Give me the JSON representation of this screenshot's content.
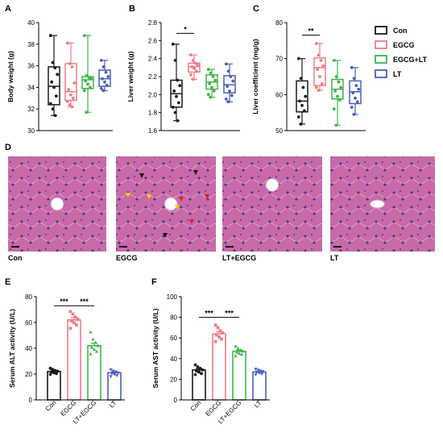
{
  "colors": {
    "Con": "#1a1a1a",
    "EGCG": "#f07c86",
    "EGCG+LT": "#3fb54a",
    "LT": "#4c5fbf",
    "tissue_base": "#c86aa8",
    "tissue_light": "#e8b6d6",
    "nucleus": "#4d3a8a"
  },
  "legend": {
    "entries": [
      {
        "label": "Con",
        "color": "#1a1a1a"
      },
      {
        "label": "EGCG",
        "color": "#f07c86"
      },
      {
        "label": "EGCG+LT",
        "color": "#3fb54a"
      },
      {
        "label": "LT",
        "color": "#4c5fbf"
      }
    ]
  },
  "panel_D": {
    "letter": "D",
    "images": [
      {
        "caption": "Con"
      },
      {
        "caption": "EGCG"
      },
      {
        "caption": "LT+EGCG"
      },
      {
        "caption": "LT"
      }
    ]
  },
  "chart_data": [
    {
      "panel": "A",
      "type": "box",
      "ylabel": "Body weight (g)",
      "ylim": [
        30,
        40
      ],
      "yticks": [
        30,
        32,
        34,
        36,
        38,
        40
      ],
      "legend": "right",
      "groups": [
        {
          "name": "Con",
          "color": "#1a1a1a",
          "min": 31.4,
          "q1": 32.4,
          "median": 34.1,
          "q3": 35.9,
          "max": 38.8,
          "points": [
            38.8,
            36.3,
            35.8,
            35.2,
            34.5,
            34.0,
            33.2,
            32.5,
            32.0,
            31.4
          ]
        },
        {
          "name": "EGCG",
          "color": "#f07c86",
          "min": 32.2,
          "q1": 32.8,
          "median": 33.6,
          "q3": 36.2,
          "max": 38.1,
          "points": [
            38.1,
            36.2,
            35.9,
            34.4,
            33.8,
            33.3,
            33.0,
            32.7,
            32.4,
            32.2
          ]
        },
        {
          "name": "EGCG+LT",
          "color": "#3fb54a",
          "min": 31.7,
          "q1": 33.9,
          "median": 34.7,
          "q3": 35.0,
          "max": 38.8,
          "points": [
            38.8,
            35.1,
            34.9,
            34.8,
            34.6,
            34.3,
            34.0,
            33.7,
            31.7
          ]
        },
        {
          "name": "LT",
          "color": "#4c5fbf",
          "min": 33.7,
          "q1": 34.1,
          "median": 34.8,
          "q3": 35.6,
          "max": 36.5,
          "points": [
            36.5,
            35.9,
            35.4,
            35.0,
            34.8,
            34.5,
            34.2,
            33.9,
            33.7
          ]
        }
      ]
    },
    {
      "panel": "B",
      "type": "box",
      "ylabel": "Liver weight (g)",
      "ylim": [
        1.6,
        2.8
      ],
      "yticks": [
        1.6,
        1.8,
        2.0,
        2.2,
        2.4,
        2.6,
        2.8
      ],
      "significance": [
        {
          "from": 0,
          "to": 1,
          "text": "*",
          "y": 2.68
        }
      ],
      "groups": [
        {
          "name": "Con",
          "color": "#1a1a1a",
          "min": 1.71,
          "q1": 1.86,
          "median": 2.01,
          "q3": 2.16,
          "max": 2.56,
          "points": [
            2.56,
            2.38,
            2.16,
            2.1,
            2.04,
            1.98,
            1.91,
            1.86,
            1.8,
            1.71
          ]
        },
        {
          "name": "EGCG",
          "color": "#f07c86",
          "min": 2.17,
          "q1": 2.25,
          "median": 2.31,
          "q3": 2.35,
          "max": 2.44,
          "points": [
            2.44,
            2.38,
            2.35,
            2.33,
            2.31,
            2.29,
            2.26,
            2.22,
            2.17
          ]
        },
        {
          "name": "EGCG+LT",
          "color": "#3fb54a",
          "min": 1.97,
          "q1": 2.06,
          "median": 2.14,
          "q3": 2.22,
          "max": 2.28,
          "points": [
            2.28,
            2.24,
            2.2,
            2.16,
            2.12,
            2.08,
            2.04,
            2.0,
            1.97
          ]
        },
        {
          "name": "LT",
          "color": "#4c5fbf",
          "min": 1.92,
          "q1": 2.02,
          "median": 2.11,
          "q3": 2.21,
          "max": 2.34,
          "points": [
            2.34,
            2.26,
            2.2,
            2.15,
            2.09,
            2.04,
            1.99,
            1.95,
            1.92
          ]
        }
      ]
    },
    {
      "panel": "C",
      "type": "box",
      "ylabel": "Liver coefficient (mg/g)",
      "ylim": [
        50,
        80
      ],
      "yticks": [
        50,
        60,
        70,
        80
      ],
      "significance": [
        {
          "from": 0,
          "to": 1,
          "text": "**",
          "y": 76.5
        }
      ],
      "groups": [
        {
          "name": "Con",
          "color": "#1a1a1a",
          "min": 51.8,
          "q1": 55.2,
          "median": 58.2,
          "q3": 63.8,
          "max": 70.0,
          "points": [
            70.0,
            64.5,
            62.0,
            59.5,
            58.2,
            57.0,
            55.5,
            53.8,
            51.8
          ]
        },
        {
          "name": "EGCG",
          "color": "#f07c86",
          "min": 61.2,
          "q1": 62.5,
          "median": 67.5,
          "q3": 70.2,
          "max": 74.2,
          "points": [
            74.2,
            71.0,
            69.5,
            68.0,
            67.0,
            65.0,
            63.0,
            62.0,
            61.2
          ]
        },
        {
          "name": "EGCG+LT",
          "color": "#3fb54a",
          "min": 51.5,
          "q1": 58.8,
          "median": 61.5,
          "q3": 64.2,
          "max": 69.5,
          "points": [
            69.5,
            65.0,
            63.5,
            62.0,
            61.0,
            59.5,
            58.5,
            56.0,
            51.5
          ]
        },
        {
          "name": "LT",
          "color": "#4c5fbf",
          "min": 54.5,
          "q1": 57.5,
          "median": 60.8,
          "q3": 63.8,
          "max": 67.5,
          "points": [
            67.5,
            64.5,
            62.5,
            61.5,
            60.5,
            59.0,
            58.0,
            56.5,
            54.5
          ]
        }
      ]
    },
    {
      "panel": "E",
      "type": "bar",
      "ylabel": "Serum ALT activity (U/L)",
      "ylim": [
        0,
        80
      ],
      "yticks": [
        0,
        20,
        40,
        60,
        80
      ],
      "categories": [
        "Con",
        "EGCG",
        "LT+EGCG",
        "LT"
      ],
      "markers": [
        "circle",
        "square",
        "triangle",
        "invtriangle"
      ],
      "significance": [
        {
          "from": 0,
          "to": 1,
          "text": "***",
          "y": 73
        },
        {
          "from": 1,
          "to": 2,
          "text": "***",
          "y": 73
        }
      ],
      "groups": [
        {
          "name": "Con",
          "color": "#1a1a1a",
          "mean": 22,
          "sem": 1.0,
          "points": [
            24.5,
            23.6,
            22.8,
            22.2,
            21.6,
            21.0,
            20.4,
            19.8
          ]
        },
        {
          "name": "EGCG",
          "color": "#f07c86",
          "mean": 62,
          "sem": 2.0,
          "points": [
            68.5,
            66.5,
            64.2,
            62.5,
            61.0,
            59.8,
            58.0,
            55.5
          ]
        },
        {
          "name": "LT+EGCG",
          "color": "#3fb54a",
          "mean": 42,
          "sem": 2.0,
          "points": [
            52.5,
            47.0,
            44.5,
            42.0,
            40.5,
            39.0,
            37.5,
            35.5
          ]
        },
        {
          "name": "LT",
          "color": "#4c5fbf",
          "mean": 21,
          "sem": 0.8,
          "points": [
            23.5,
            22.5,
            21.8,
            21.0,
            20.4,
            19.8,
            19.0,
            18.2
          ]
        }
      ]
    },
    {
      "panel": "F",
      "type": "bar",
      "ylabel": "Serum AST activity (U/L)",
      "ylim": [
        0,
        100
      ],
      "yticks": [
        0,
        20,
        40,
        60,
        80,
        100
      ],
      "categories": [
        "Con",
        "EGCG",
        "LT+EGCG",
        "LT"
      ],
      "markers": [
        "circle",
        "square",
        "triangle",
        "invtriangle"
      ],
      "significance": [
        {
          "from": 0,
          "to": 1,
          "text": "***",
          "y": 80
        },
        {
          "from": 1,
          "to": 2,
          "text": "***",
          "y": 80
        }
      ],
      "groups": [
        {
          "name": "Con",
          "color": "#1a1a1a",
          "mean": 29,
          "sem": 1.2,
          "points": [
            34.0,
            32.0,
            30.5,
            29.0,
            28.0,
            27.0,
            25.5,
            24.5
          ]
        },
        {
          "name": "EGCG",
          "color": "#f07c86",
          "mean": 64,
          "sem": 2.0,
          "points": [
            72.5,
            70.0,
            67.0,
            65.0,
            63.0,
            61.0,
            59.0,
            56.5
          ]
        },
        {
          "name": "LT+EGCG",
          "color": "#3fb54a",
          "mean": 47,
          "sem": 1.2,
          "points": [
            52.0,
            50.0,
            48.5,
            47.0,
            46.0,
            45.0,
            44.0,
            42.5
          ]
        },
        {
          "name": "LT",
          "color": "#4c5fbf",
          "mean": 27,
          "sem": 0.8,
          "points": [
            30.0,
            29.0,
            28.2,
            27.5,
            26.8,
            26.0,
            25.2,
            24.5
          ]
        }
      ]
    }
  ]
}
